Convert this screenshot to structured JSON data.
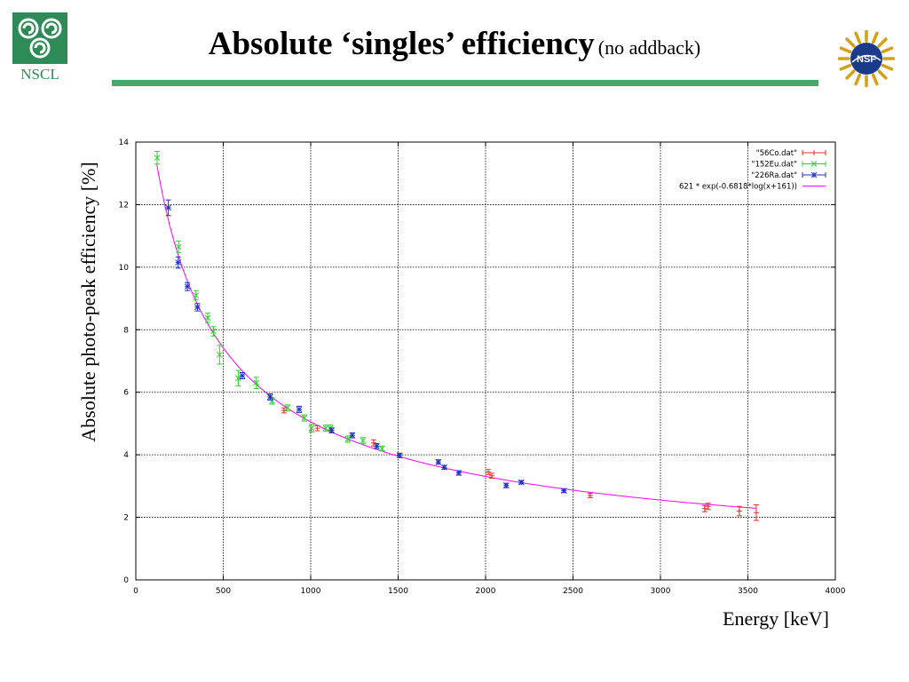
{
  "slide": {
    "title_main": "Absolute ‘singles’ efficiency",
    "title_sub": "(no addback)",
    "logo_left_text": "NSCL",
    "logo_right_text": "NSF",
    "accent_color": "#4aa56a"
  },
  "chart_data": {
    "type": "scatter",
    "title": "",
    "xlabel": "Energy [keV]",
    "ylabel": "Absolute photo-peak efficiency [%]",
    "xlim": [
      0,
      4000
    ],
    "ylim": [
      0,
      14
    ],
    "xticks": [
      0,
      500,
      1000,
      1500,
      2000,
      2500,
      3000,
      3500,
      4000
    ],
    "yticks": [
      0,
      2,
      4,
      6,
      8,
      10,
      12,
      14
    ],
    "grid": true,
    "legend_position": "top-right",
    "series": [
      {
        "name": "\"56Co.dat\"",
        "color": "#e03030",
        "marker": "plus",
        "points": [
          {
            "x": 847,
            "y": 5.42,
            "err": 0.08
          },
          {
            "x": 1038,
            "y": 4.85,
            "err": 0.08
          },
          {
            "x": 1360,
            "y": 4.38,
            "err": 0.1
          },
          {
            "x": 2015,
            "y": 3.45,
            "err": 0.08
          },
          {
            "x": 2035,
            "y": 3.33,
            "err": 0.08
          },
          {
            "x": 2598,
            "y": 2.7,
            "err": 0.07
          },
          {
            "x": 3253,
            "y": 2.28,
            "err": 0.1
          },
          {
            "x": 3273,
            "y": 2.35,
            "err": 0.1
          },
          {
            "x": 3451,
            "y": 2.2,
            "err": 0.15
          },
          {
            "x": 3548,
            "y": 2.15,
            "err": 0.25
          }
        ]
      },
      {
        "name": "\"152Eu.dat\"",
        "color": "#30d030",
        "marker": "cross",
        "points": [
          {
            "x": 122,
            "y": 13.5,
            "err": 0.2
          },
          {
            "x": 245,
            "y": 10.65,
            "err": 0.18
          },
          {
            "x": 344,
            "y": 9.1,
            "err": 0.15
          },
          {
            "x": 411,
            "y": 8.38,
            "err": 0.15
          },
          {
            "x": 444,
            "y": 7.95,
            "err": 0.15
          },
          {
            "x": 479,
            "y": 7.2,
            "err": 0.3
          },
          {
            "x": 586,
            "y": 6.45,
            "err": 0.25
          },
          {
            "x": 689,
            "y": 6.3,
            "err": 0.18
          },
          {
            "x": 779,
            "y": 5.72,
            "err": 0.1
          },
          {
            "x": 867,
            "y": 5.5,
            "err": 0.1
          },
          {
            "x": 964,
            "y": 5.18,
            "err": 0.1
          },
          {
            "x": 1005,
            "y": 4.85,
            "err": 0.12
          },
          {
            "x": 1086,
            "y": 4.85,
            "err": 0.1
          },
          {
            "x": 1112,
            "y": 4.85,
            "err": 0.1
          },
          {
            "x": 1212,
            "y": 4.5,
            "err": 0.1
          },
          {
            "x": 1299,
            "y": 4.45,
            "err": 0.1
          },
          {
            "x": 1408,
            "y": 4.2,
            "err": 0.08
          }
        ]
      },
      {
        "name": "\"226Ra.dat\"",
        "color": "#2030c0",
        "marker": "star",
        "points": [
          {
            "x": 186,
            "y": 11.9,
            "err": 0.25
          },
          {
            "x": 242,
            "y": 10.15,
            "err": 0.18
          },
          {
            "x": 295,
            "y": 9.38,
            "err": 0.13
          },
          {
            "x": 352,
            "y": 8.72,
            "err": 0.12
          },
          {
            "x": 609,
            "y": 6.53,
            "err": 0.1
          },
          {
            "x": 768,
            "y": 5.85,
            "err": 0.1
          },
          {
            "x": 934,
            "y": 5.45,
            "err": 0.1
          },
          {
            "x": 1120,
            "y": 4.78,
            "err": 0.08
          },
          {
            "x": 1238,
            "y": 4.62,
            "err": 0.08
          },
          {
            "x": 1378,
            "y": 4.28,
            "err": 0.08
          },
          {
            "x": 1509,
            "y": 3.98,
            "err": 0.07
          },
          {
            "x": 1730,
            "y": 3.77,
            "err": 0.07
          },
          {
            "x": 1764,
            "y": 3.6,
            "err": 0.06
          },
          {
            "x": 1847,
            "y": 3.42,
            "err": 0.07
          },
          {
            "x": 2118,
            "y": 3.02,
            "err": 0.07
          },
          {
            "x": 2204,
            "y": 3.12,
            "err": 0.05
          },
          {
            "x": 2448,
            "y": 2.85,
            "err": 0.05
          }
        ]
      }
    ],
    "fit": {
      "name": "621 * exp(-0.6818*log(x+161))",
      "color": "#ff00ff",
      "a": 621,
      "b": -0.6818,
      "c": 161,
      "x_range": [
        120,
        3550
      ]
    }
  }
}
